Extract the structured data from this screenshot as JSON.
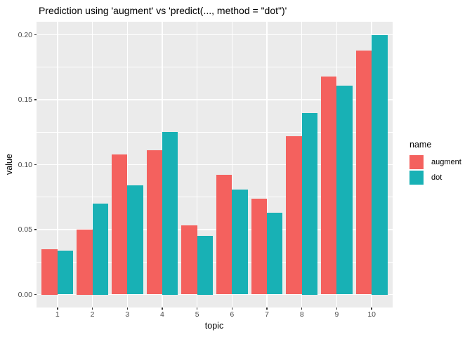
{
  "chart_data": {
    "type": "bar",
    "title": "Prediction using 'augment' vs 'predict(..., method = \"dot\")'",
    "xlabel": "topic",
    "ylabel": "value",
    "categories": [
      "1",
      "2",
      "3",
      "4",
      "5",
      "6",
      "7",
      "8",
      "9",
      "10"
    ],
    "series": [
      {
        "name": "augment",
        "color": "#F4615E",
        "values": [
          0.035,
          0.05,
          0.108,
          0.111,
          0.053,
          0.092,
          0.074,
          0.122,
          0.168,
          0.188
        ]
      },
      {
        "name": "dot",
        "color": "#18B1B5",
        "values": [
          0.034,
          0.07,
          0.084,
          0.125,
          0.045,
          0.081,
          0.063,
          0.14,
          0.161,
          0.2
        ]
      }
    ],
    "ylim": [
      -0.01,
      0.21
    ],
    "y_major_ticks": [
      0.0,
      0.05,
      0.1,
      0.15,
      0.2
    ],
    "y_tick_labels": [
      "0.00",
      "0.05",
      "0.10",
      "0.15",
      "0.20"
    ],
    "y_minor_ticks": [
      0.025,
      0.075,
      0.125,
      0.175
    ],
    "grid": "on",
    "legend_position": "right",
    "legend_title": "name",
    "panel_background": "#EBEBEB",
    "gridline_color": "#FFFFFF"
  }
}
